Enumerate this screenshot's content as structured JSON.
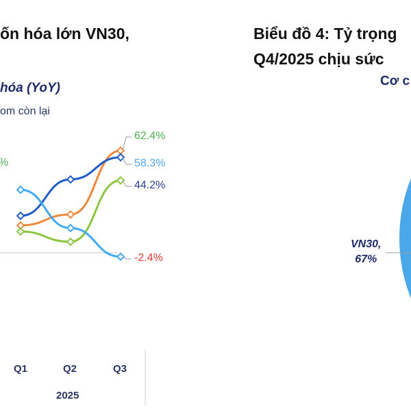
{
  "left_panel": {
    "title": "ốn hóa lớn VN30,",
    "subtitle": "hóa (YoY)",
    "legend_fragment": "om còn lại",
    "partial_label": "%"
  },
  "right_panel": {
    "title_line1": "Biểu đồ 4: Tỷ trọng",
    "title_line2": "Q4/2025 chịu sức",
    "subtitle": "Cơ c"
  },
  "chart_data": [
    {
      "type": "line",
      "categories": [
        "Q1",
        "Q2",
        "Q3"
      ],
      "group_label": "2025",
      "y_unit": "%",
      "series": [
        {
          "color": "#f0873a",
          "values": [
            16.7,
            23.4,
            62.4
          ],
          "end_label": "62.4%",
          "label_color": "#4caf50"
        },
        {
          "color": "#1f5bc6",
          "values": [
            22.6,
            44.8,
            58.3
          ],
          "end_label": "58.3%",
          "label_color": "#4ea6ec"
        },
        {
          "color": "#8cc63f",
          "values": [
            13.0,
            6.7,
            44.2
          ],
          "end_label": "44.2%",
          "label_color": "#2b3f8f"
        },
        {
          "color": "#3fa9f5",
          "values": [
            38.5,
            15.1,
            -2.4
          ],
          "end_label": "-2.4%",
          "label_color": "#e53935"
        }
      ]
    },
    {
      "type": "pie",
      "slices": [
        {
          "label": "VN30,",
          "value_label": "67%",
          "value": 67,
          "color": "#4aa8e8"
        }
      ]
    }
  ]
}
